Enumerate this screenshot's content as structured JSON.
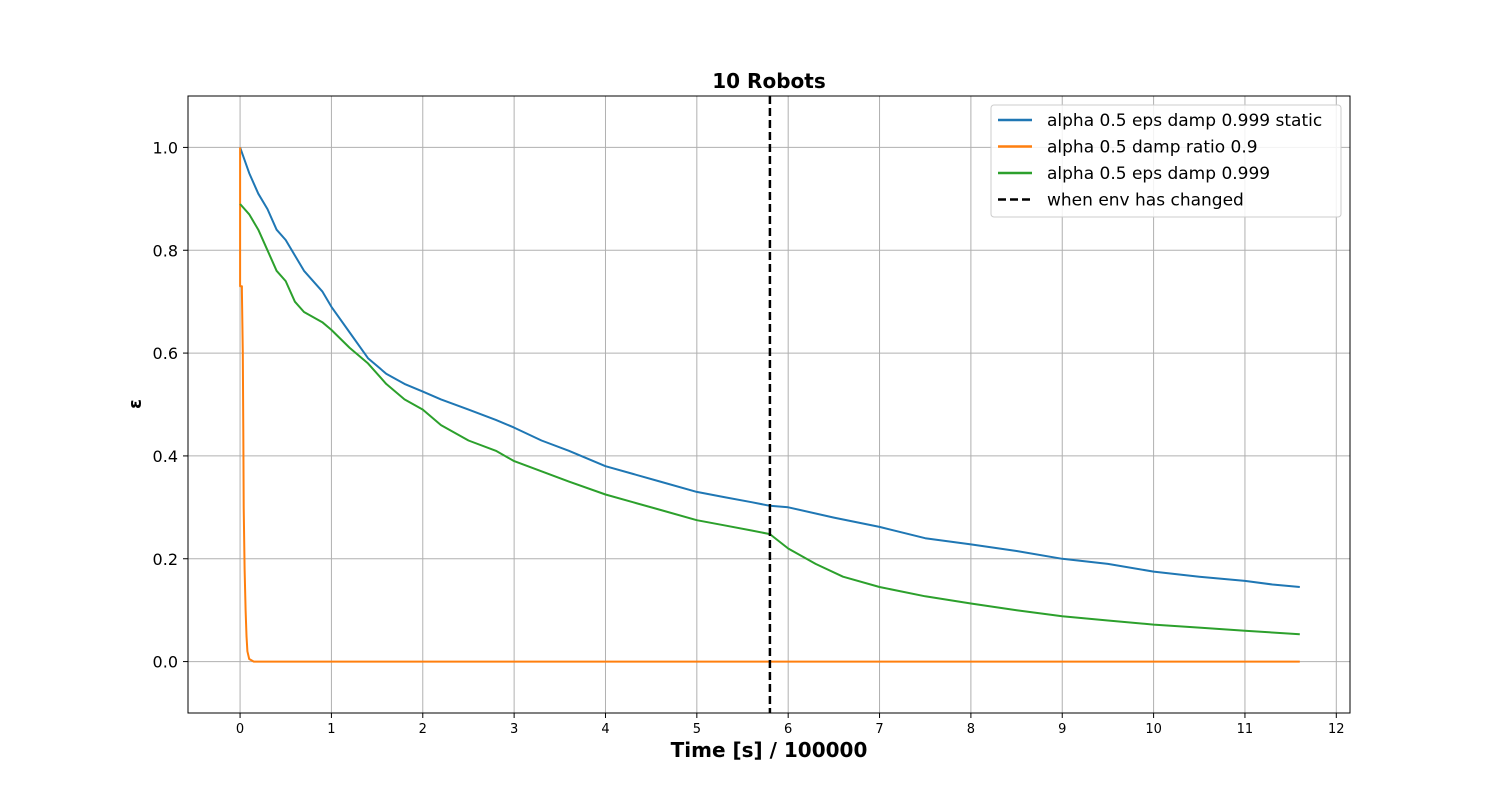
{
  "chart_data": {
    "type": "line",
    "title": "10 Robots",
    "xlabel": "Time [s] / 100000",
    "ylabel": "ε",
    "xlim": [
      -0.57,
      12.15
    ],
    "ylim": [
      -0.1,
      1.1
    ],
    "xticks": [
      "0",
      "1",
      "2",
      "3",
      "4",
      "5",
      "6",
      "7",
      "8",
      "9",
      "10",
      "11",
      "12"
    ],
    "yticks": [
      "0.0",
      "0.2",
      "0.4",
      "0.6",
      "0.8",
      "1.0"
    ],
    "grid": true,
    "legend_position": "top-right",
    "series": [
      {
        "name": " alpha 0.5 eps damp 0.999 static",
        "color": "#1f77b4",
        "x": [
          0,
          0.1,
          0.2,
          0.3,
          0.4,
          0.5,
          0.7,
          0.9,
          1.0,
          1.2,
          1.4,
          1.6,
          1.8,
          2.0,
          2.2,
          2.5,
          2.8,
          3.0,
          3.3,
          3.6,
          4.0,
          4.3,
          4.6,
          5.0,
          5.3,
          5.6,
          5.8,
          6.0,
          6.5,
          7.0,
          7.5,
          8.0,
          8.5,
          9.0,
          9.5,
          10.0,
          10.5,
          11.0,
          11.3,
          11.6
        ],
        "y": [
          1.0,
          0.95,
          0.91,
          0.88,
          0.84,
          0.82,
          0.76,
          0.72,
          0.69,
          0.64,
          0.59,
          0.56,
          0.54,
          0.525,
          0.51,
          0.49,
          0.47,
          0.455,
          0.43,
          0.41,
          0.38,
          0.365,
          0.35,
          0.33,
          0.32,
          0.31,
          0.303,
          0.3,
          0.28,
          0.262,
          0.24,
          0.228,
          0.215,
          0.2,
          0.19,
          0.175,
          0.165,
          0.157,
          0.15,
          0.145
        ]
      },
      {
        "name": " alpha 0.5 damp ratio 0.9",
        "color": "#ff7f0e",
        "x": [
          0,
          0.0,
          0.01,
          0.02,
          0.02,
          0.03,
          0.035,
          0.04,
          0.05,
          0.06,
          0.07,
          0.08,
          0.1,
          0.15,
          0.3,
          1.0,
          3.0,
          6.0,
          9.0,
          11.6
        ],
        "y": [
          1.0,
          0.73,
          0.73,
          0.73,
          0.72,
          0.6,
          0.45,
          0.3,
          0.18,
          0.1,
          0.05,
          0.02,
          0.005,
          0.0,
          0.0,
          0.0,
          0.0,
          0.0,
          0.0,
          0.0
        ]
      },
      {
        "name": " alpha 0.5 eps damp 0.999",
        "color": "#2ca02c",
        "x": [
          0,
          0.1,
          0.2,
          0.3,
          0.4,
          0.5,
          0.6,
          0.7,
          0.9,
          1.0,
          1.2,
          1.4,
          1.6,
          1.8,
          2.0,
          2.2,
          2.5,
          2.8,
          3.0,
          3.3,
          3.6,
          4.0,
          4.3,
          4.6,
          5.0,
          5.3,
          5.6,
          5.8,
          6.0,
          6.3,
          6.6,
          7.0,
          7.5,
          8.0,
          8.5,
          9.0,
          9.5,
          10.0,
          10.5,
          11.0,
          11.6
        ],
        "y": [
          0.89,
          0.87,
          0.84,
          0.8,
          0.76,
          0.74,
          0.7,
          0.68,
          0.66,
          0.645,
          0.61,
          0.58,
          0.54,
          0.51,
          0.49,
          0.46,
          0.43,
          0.41,
          0.39,
          0.37,
          0.35,
          0.325,
          0.31,
          0.295,
          0.275,
          0.265,
          0.255,
          0.248,
          0.22,
          0.19,
          0.165,
          0.145,
          0.127,
          0.113,
          0.1,
          0.088,
          0.08,
          0.072,
          0.066,
          0.06,
          0.053
        ]
      }
    ],
    "vline": {
      "name": "when env has changed",
      "x": 5.8,
      "color": "#000000",
      "style": "dashed"
    }
  }
}
